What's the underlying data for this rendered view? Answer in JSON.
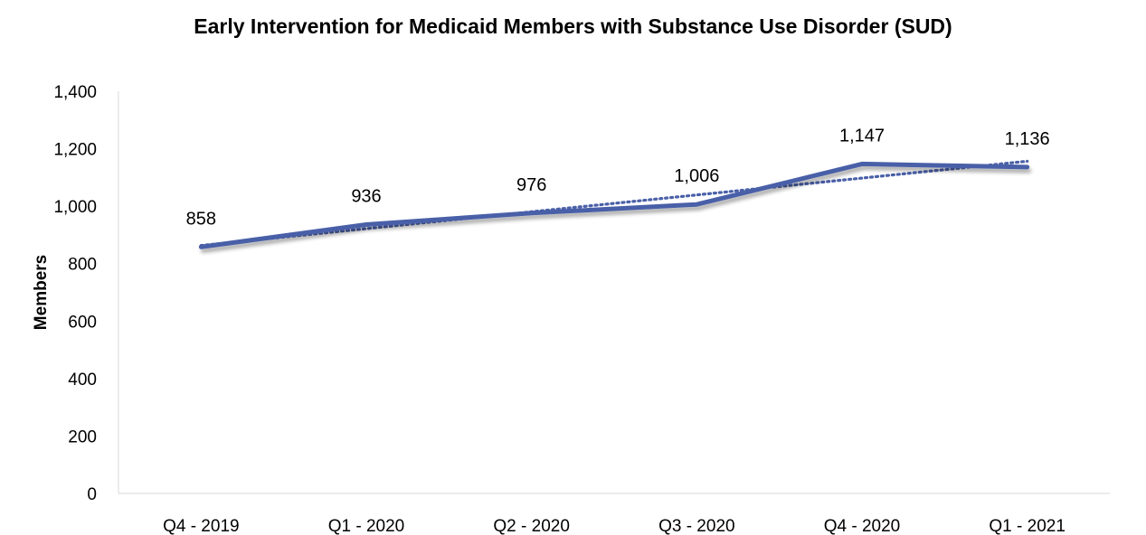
{
  "chart_data": {
    "type": "line",
    "title": "Early Intervention for Medicaid Members with Substance Use Disorder (SUD)",
    "xlabel": "",
    "ylabel": "Members",
    "categories": [
      "Q4 - 2019",
      "Q1 - 2020",
      "Q2 - 2020",
      "Q3 - 2020",
      "Q4 - 2020",
      "Q1 - 2021"
    ],
    "series": [
      {
        "values": [
          858,
          936,
          976,
          1006,
          1147,
          1136
        ],
        "data_labels": [
          "858",
          "936",
          "976",
          "1,006",
          "1,147",
          "1,136"
        ],
        "color": "#4a60a8",
        "style": "solid"
      }
    ],
    "trendline": {
      "type": "linear",
      "style": "dotted",
      "color": "#4a60a8"
    },
    "ylim": [
      0,
      1400
    ],
    "yticks": [
      0,
      200,
      400,
      600,
      800,
      1000,
      1200,
      1400
    ],
    "ytick_labels": [
      "0",
      "200",
      "400",
      "600",
      "800",
      "1,000",
      "1,200",
      "1,400"
    ],
    "grid": false,
    "legend": "none"
  }
}
